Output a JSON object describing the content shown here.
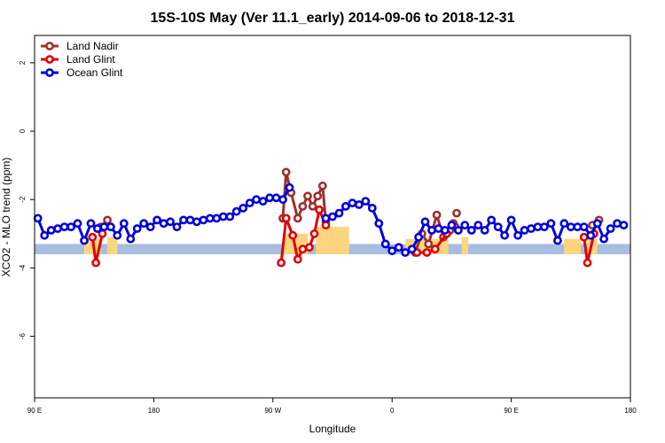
{
  "chart_data": {
    "type": "line",
    "title": "15S-10S May (Ver 11.1_early)   2014-09-06 to 2018-12-31",
    "xlabel": "Longitude",
    "ylabel": "XCO2 - MLO trend (ppm)",
    "xlim": [
      -90,
      270
    ],
    "ylim": [
      -7.8,
      2.8
    ],
    "xticks": [
      {
        "value": -90,
        "label": "90 E"
      },
      {
        "value": -18,
        "label": "180"
      },
      {
        "value": 54,
        "label": "90 W"
      },
      {
        "value": 126,
        "label": "0"
      },
      {
        "value": 198,
        "label": "90 E"
      },
      {
        "value": 270,
        "label": "180"
      }
    ],
    "yticks": [
      {
        "value": 2,
        "label": "2"
      },
      {
        "value": 0,
        "label": "0"
      },
      {
        "value": -2,
        "label": "-2"
      },
      {
        "value": -4,
        "label": "-4"
      },
      {
        "value": -6,
        "label": "-6"
      }
    ],
    "legend_position": "top-left",
    "grid": false,
    "land_band": {
      "y_range": [
        -3.6,
        -3.3
      ],
      "color": "#a8bee0",
      "land_color": "#fcd57e",
      "land_segments": [
        {
          "x": [
            -60,
            -50
          ],
          "height": 0.15
        },
        {
          "x": [
            -46,
            -40
          ],
          "height": 0.2
        },
        {
          "x": [
            60,
            75
          ],
          "height": 0.3
        },
        {
          "x": [
            80,
            100
          ],
          "height": 0.5
        },
        {
          "x": [
            134,
            160
          ],
          "height": 0.15
        },
        {
          "x": [
            168,
            172
          ],
          "height": 0.2
        },
        {
          "x": [
            230,
            240
          ],
          "height": 0.15
        },
        {
          "x": [
            244,
            250
          ],
          "height": 0.15
        }
      ]
    },
    "series": [
      {
        "name": "Land Nadir",
        "color": "#a03030",
        "segments": [
          [
            [
              -50,
              -2.8
            ],
            [
              -46,
              -2.6
            ]
          ],
          [
            [
              60,
              -2.55
            ],
            [
              62,
              -1.2
            ],
            [
              65,
              -1.8
            ],
            [
              69,
              -2.55
            ],
            [
              72,
              -2.2
            ],
            [
              75,
              -1.9
            ],
            [
              78,
              -2.2
            ],
            [
              81,
              -1.9
            ],
            [
              84,
              -1.6
            ],
            [
              86,
              -2.65
            ]
          ],
          [
            [
              140,
              -3.55
            ],
            [
              144,
              -3.0
            ],
            [
              148,
              -3.3
            ],
            [
              153,
              -2.45
            ],
            [
              157,
              -3.1
            ],
            [
              161,
              -2.9
            ]
          ],
          [
            [
              163,
              -2.7
            ]
          ],
          [
            [
              165,
              -2.4
            ]
          ],
          [
            [
              247,
              -2.75
            ],
            [
              251,
              -2.6
            ]
          ]
        ]
      },
      {
        "name": "Land Glint",
        "color": "#e00000",
        "segments": [
          [
            [
              -55,
              -3.1
            ],
            [
              -53,
              -3.85
            ],
            [
              -49,
              -3.0
            ]
          ],
          [
            [
              59,
              -3.85
            ],
            [
              62,
              -2.55
            ],
            [
              66,
              -3.05
            ],
            [
              69,
              -3.75
            ],
            [
              72,
              -3.45
            ],
            [
              76,
              -3.4
            ],
            [
              79,
              -3.0
            ],
            [
              82,
              -2.3
            ],
            [
              86,
              -2.75
            ]
          ],
          [
            [
              141,
              -3.55
            ],
            [
              147,
              -3.55
            ],
            [
              152,
              -3.45
            ],
            [
              159,
              -3.0
            ]
          ],
          [
            [
              164,
              -2.8
            ]
          ],
          [
            [
              242,
              -3.1
            ],
            [
              244,
              -3.85
            ],
            [
              248,
              -3.0
            ]
          ]
        ]
      },
      {
        "name": "Ocean Glint",
        "color": "#0000e0",
        "segments": [
          [
            [
              -88,
              -2.55
            ],
            [
              -84,
              -3.05
            ],
            [
              -80,
              -2.9
            ],
            [
              -76,
              -2.85
            ],
            [
              -72,
              -2.8
            ],
            [
              -68,
              -2.8
            ],
            [
              -64,
              -2.7
            ],
            [
              -60,
              -3.2
            ],
            [
              -56,
              -2.7
            ],
            [
              -52,
              -2.85
            ],
            [
              -48,
              -2.8
            ],
            [
              -44,
              -2.8
            ],
            [
              -40,
              -3.05
            ],
            [
              -36,
              -2.7
            ],
            [
              -32,
              -3.15
            ],
            [
              -28,
              -2.85
            ],
            [
              -24,
              -2.7
            ],
            [
              -20,
              -2.8
            ],
            [
              -16,
              -2.6
            ],
            [
              -12,
              -2.7
            ],
            [
              -8,
              -2.65
            ],
            [
              -4,
              -2.8
            ],
            [
              0,
              -2.6
            ],
            [
              4,
              -2.6
            ],
            [
              8,
              -2.65
            ],
            [
              12,
              -2.6
            ],
            [
              16,
              -2.55
            ],
            [
              20,
              -2.55
            ],
            [
              24,
              -2.5
            ],
            [
              28,
              -2.5
            ],
            [
              32,
              -2.35
            ],
            [
              36,
              -2.25
            ],
            [
              40,
              -2.1
            ],
            [
              44,
              -2.0
            ],
            [
              48,
              -2.05
            ],
            [
              52,
              -1.95
            ],
            [
              56,
              -1.95
            ],
            [
              60,
              -2.0
            ],
            [
              64,
              -1.65
            ]
          ],
          [
            [
              86,
              -2.55
            ],
            [
              90,
              -2.5
            ],
            [
              94,
              -2.4
            ],
            [
              98,
              -2.2
            ],
            [
              102,
              -2.1
            ],
            [
              106,
              -2.15
            ],
            [
              110,
              -2.05
            ],
            [
              114,
              -2.25
            ],
            [
              118,
              -2.7
            ],
            [
              122,
              -3.3
            ],
            [
              126,
              -3.5
            ],
            [
              130,
              -3.4
            ],
            [
              134,
              -3.55
            ],
            [
              138,
              -3.45
            ],
            [
              142,
              -3.1
            ],
            [
              146,
              -2.65
            ],
            [
              150,
              -2.9
            ],
            [
              154,
              -2.85
            ],
            [
              158,
              -2.9
            ],
            [
              162,
              -2.75
            ],
            [
              166,
              -2.9
            ],
            [
              170,
              -2.75
            ],
            [
              174,
              -2.9
            ],
            [
              178,
              -2.75
            ],
            [
              182,
              -2.9
            ],
            [
              186,
              -2.6
            ],
            [
              190,
              -2.8
            ],
            [
              194,
              -3.05
            ],
            [
              198,
              -2.6
            ],
            [
              202,
              -3.05
            ],
            [
              206,
              -2.9
            ],
            [
              210,
              -2.85
            ],
            [
              214,
              -2.8
            ],
            [
              218,
              -2.8
            ],
            [
              222,
              -2.7
            ],
            [
              226,
              -3.2
            ],
            [
              230,
              -2.7
            ],
            [
              234,
              -2.8
            ],
            [
              238,
              -2.8
            ],
            [
              242,
              -2.8
            ],
            [
              246,
              -3.05
            ],
            [
              250,
              -2.7
            ],
            [
              254,
              -3.15
            ],
            [
              258,
              -2.85
            ],
            [
              262,
              -2.7
            ],
            [
              266,
              -2.75
            ]
          ]
        ]
      }
    ]
  }
}
